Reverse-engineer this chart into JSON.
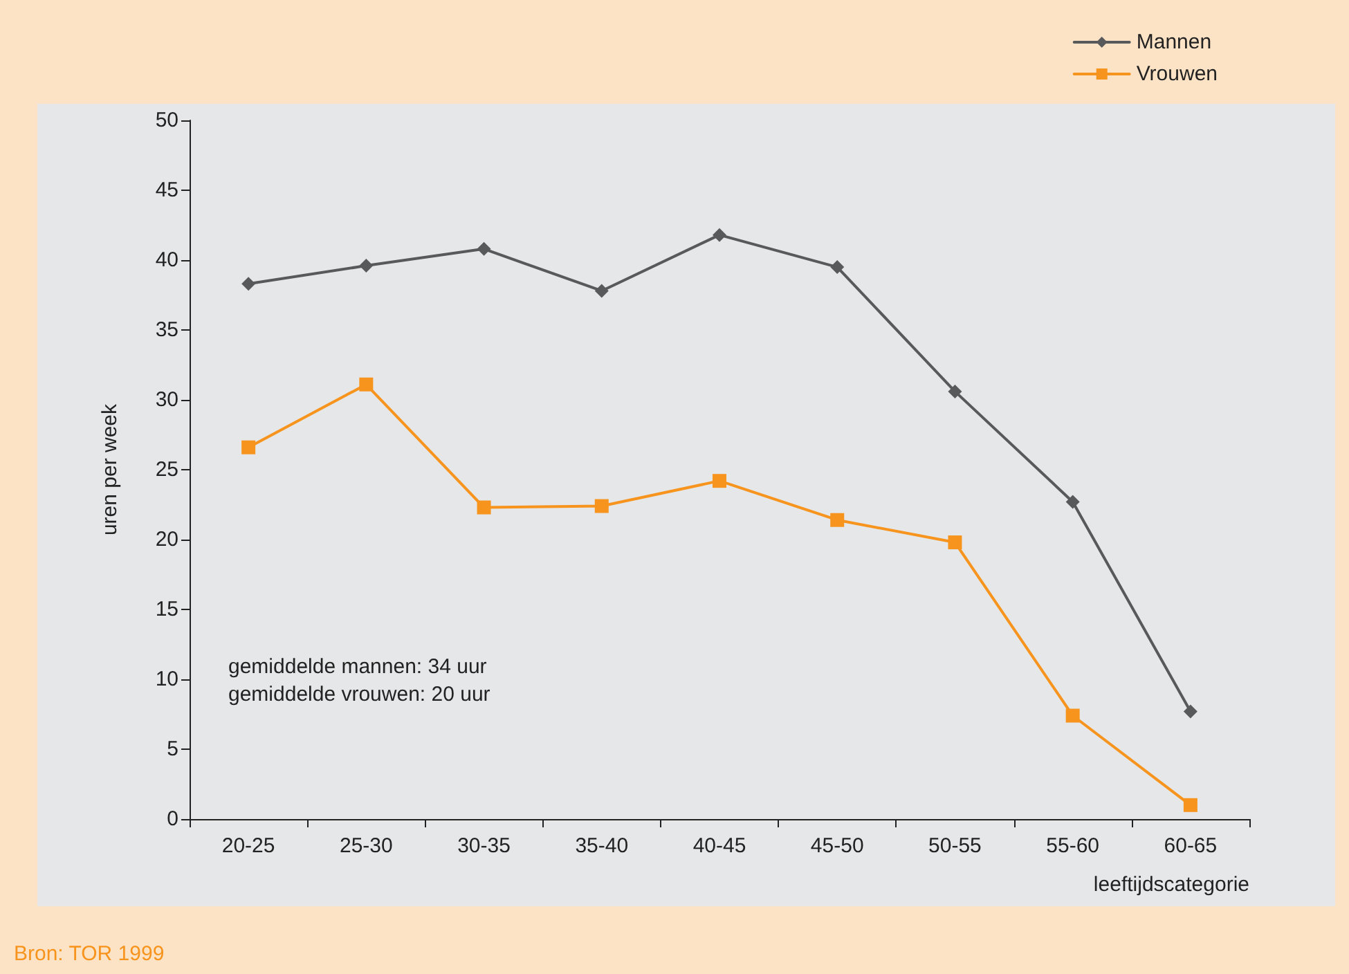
{
  "chart_data": {
    "type": "line",
    "ylabel": "uren per week",
    "xlabel": "leeftijdscategorie",
    "categories": [
      "20-25",
      "25-30",
      "30-35",
      "35-40",
      "40-45",
      "45-50",
      "50-55",
      "55-60",
      "60-65"
    ],
    "series": [
      {
        "name": "Mannen",
        "color": "#58595b",
        "marker": "diamond",
        "values": [
          38.3,
          39.6,
          40.8,
          37.8,
          41.8,
          39.5,
          30.6,
          22.7,
          7.7
        ]
      },
      {
        "name": "Vrouwen",
        "color": "#f7941d",
        "marker": "square",
        "values": [
          26.6,
          31.1,
          22.3,
          22.4,
          24.2,
          21.4,
          19.8,
          7.4,
          1.0
        ]
      }
    ],
    "ylim": [
      0,
      50
    ],
    "yticks": [
      0,
      5,
      10,
      15,
      20,
      25,
      30,
      35,
      40,
      45,
      50
    ],
    "grid": false,
    "legend": "top right",
    "line_style": "solid",
    "annotations": [
      "gemiddelde mannen: 34 uur\ngemiddelde vrouwen: 20 uur",
      "Bron: TOR 1999"
    ]
  }
}
